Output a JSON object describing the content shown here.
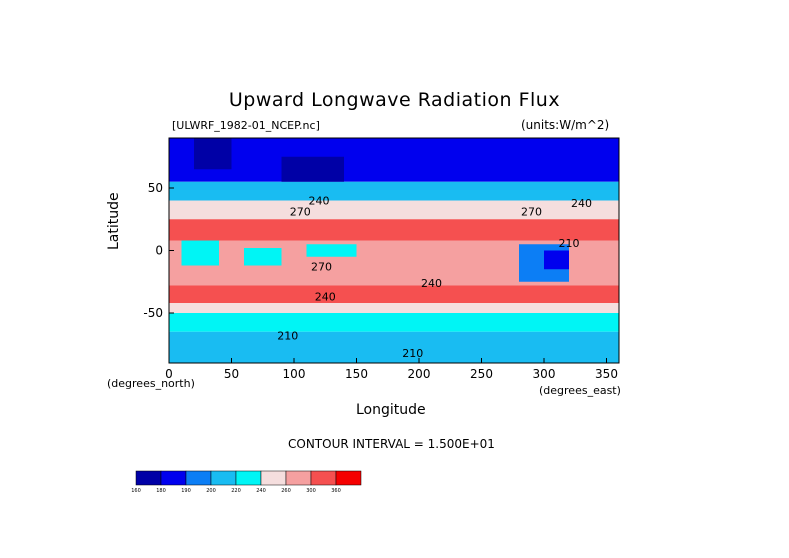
{
  "chart_data": {
    "type": "heatmap",
    "title": "Upward Longwave Radiation Flux",
    "source_file": "[ULWRF_1982-01_NCEP.nc]",
    "units": "(units:W/m^2)",
    "xlabel": "Longitude",
    "ylabel": "Latitude",
    "x_unit_left": "(degrees_north)",
    "x_unit_right": "(degrees_east)",
    "xlim": [
      0,
      360
    ],
    "ylim": [
      -90,
      90
    ],
    "x_ticks": [
      0,
      50,
      100,
      150,
      200,
      250,
      300,
      350
    ],
    "y_ticks": [
      50,
      0,
      -50
    ],
    "contour_interval_text": "CONTOUR INTERVAL = 1.500E+01",
    "contour_labels": [
      {
        "text": "240",
        "lon": 120,
        "lat": 37
      },
      {
        "text": "270",
        "lon": 105,
        "lat": 28
      },
      {
        "text": "270",
        "lon": 290,
        "lat": 28
      },
      {
        "text": "240",
        "lon": 330,
        "lat": 35
      },
      {
        "text": "240",
        "lon": 210,
        "lat": -29
      },
      {
        "text": "240",
        "lon": 125,
        "lat": -40
      },
      {
        "text": "270",
        "lon": 122,
        "lat": -16
      },
      {
        "text": "210",
        "lon": 95,
        "lat": -71
      },
      {
        "text": "210",
        "lon": 195,
        "lat": -85
      },
      {
        "text": "210",
        "lon": 320,
        "lat": 3
      }
    ],
    "legend": {
      "bounds": [
        160,
        180,
        190,
        200,
        220,
        240,
        260,
        300,
        360
      ],
      "colors": [
        "#0000a6",
        "#0000ee",
        "#0c7ef5",
        "#19bcf2",
        "#00f5f5",
        "#f5dede",
        "#f5a0a0",
        "#f55050",
        "#f50000"
      ]
    },
    "regions": [
      {
        "lon": [
          0,
          360
        ],
        "lat": [
          55,
          90
        ],
        "class": 1
      },
      {
        "lon": [
          0,
          360
        ],
        "lat": [
          40,
          55
        ],
        "class": 3
      },
      {
        "lon": [
          0,
          360
        ],
        "lat": [
          25,
          40
        ],
        "class": 5
      },
      {
        "lon": [
          0,
          360
        ],
        "lat": [
          8,
          25
        ],
        "class": 7
      },
      {
        "lon": [
          0,
          360
        ],
        "lat": [
          -28,
          8
        ],
        "class": 6
      },
      {
        "lon": [
          0,
          360
        ],
        "lat": [
          -42,
          -28
        ],
        "class": 7
      },
      {
        "lon": [
          0,
          360
        ],
        "lat": [
          -50,
          -42
        ],
        "class": 5
      },
      {
        "lon": [
          0,
          360
        ],
        "lat": [
          -65,
          -50
        ],
        "class": 4
      },
      {
        "lon": [
          0,
          360
        ],
        "lat": [
          -90,
          -65
        ],
        "class": 3
      },
      {
        "lon": [
          10,
          40
        ],
        "lat": [
          -12,
          8
        ],
        "class": 4
      },
      {
        "lon": [
          60,
          90
        ],
        "lat": [
          -12,
          2
        ],
        "class": 4
      },
      {
        "lon": [
          110,
          150
        ],
        "lat": [
          -5,
          5
        ],
        "class": 4
      },
      {
        "lon": [
          280,
          320
        ],
        "lat": [
          -25,
          5
        ],
        "class": 2
      },
      {
        "lon": [
          300,
          320
        ],
        "lat": [
          -15,
          0
        ],
        "class": 1
      },
      {
        "lon": [
          20,
          50
        ],
        "lat": [
          65,
          90
        ],
        "class": 0
      },
      {
        "lon": [
          90,
          140
        ],
        "lat": [
          55,
          75
        ],
        "class": 0
      }
    ]
  }
}
